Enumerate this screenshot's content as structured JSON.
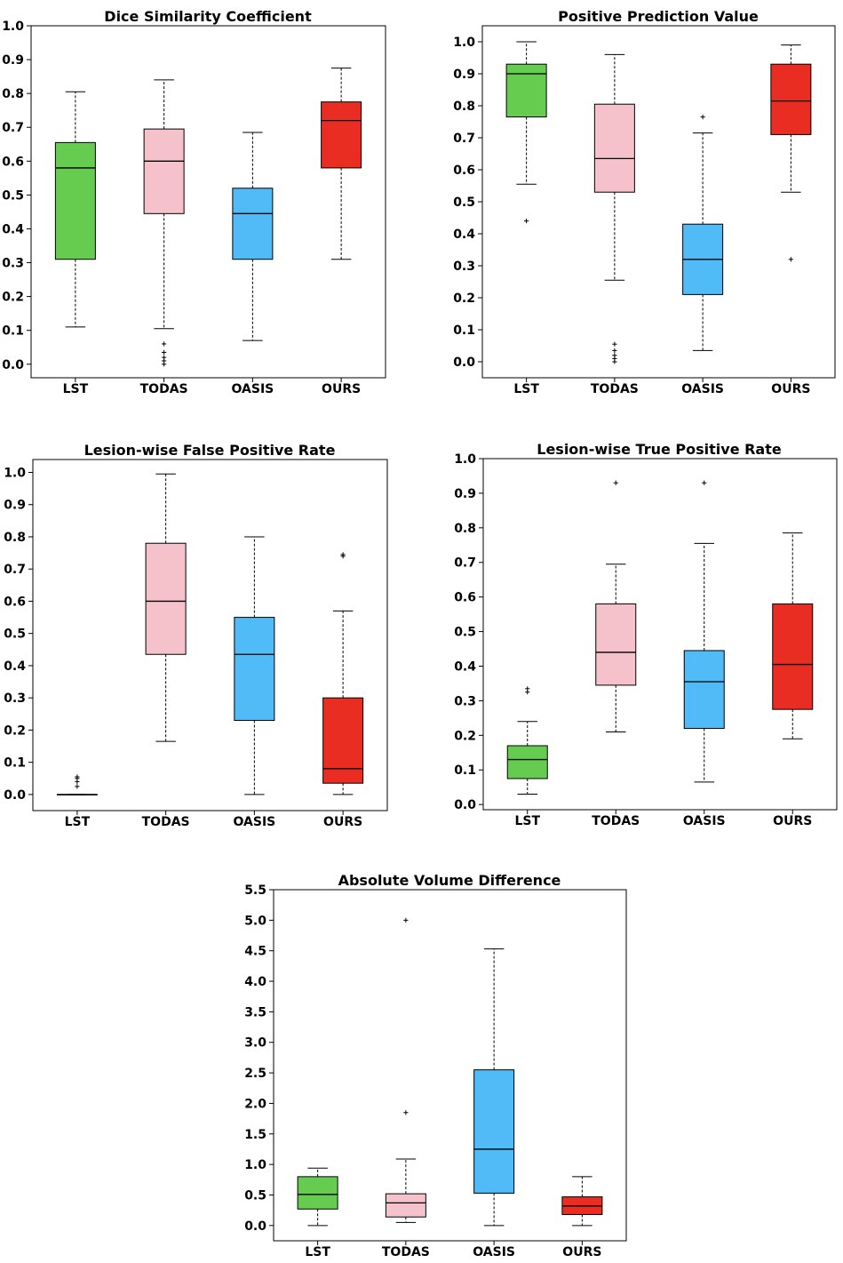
{
  "colors": {
    "LST": "#66cc4f",
    "TODAS": "#f5c2cc",
    "OASIS": "#50bbf6",
    "OURS": "#e92d22"
  },
  "chart_data": [
    {
      "type": "box",
      "title": "Dice Similarity Coefficient",
      "categories": [
        "LST",
        "TODAS",
        "OASIS",
        "OURS"
      ],
      "ylim": [
        -0.04,
        1.0
      ],
      "yticks": [
        "0.0",
        "0.1",
        "0.2",
        "0.3",
        "0.4",
        "0.5",
        "0.6",
        "0.7",
        "0.8",
        "0.9",
        "1.0"
      ],
      "grid": false,
      "boxes": [
        {
          "name": "LST",
          "whislo": 0.11,
          "q1": 0.31,
          "med": 0.58,
          "q3": 0.655,
          "whishi": 0.805,
          "fliers": []
        },
        {
          "name": "TODAS",
          "whislo": 0.105,
          "q1": 0.445,
          "med": 0.6,
          "q3": 0.695,
          "whishi": 0.84,
          "fliers": [
            0.0,
            0.01,
            0.02,
            0.035,
            0.06
          ]
        },
        {
          "name": "OASIS",
          "whislo": 0.07,
          "q1": 0.31,
          "med": 0.445,
          "q3": 0.52,
          "whishi": 0.685,
          "fliers": []
        },
        {
          "name": "OURS",
          "whislo": 0.31,
          "q1": 0.58,
          "med": 0.72,
          "q3": 0.775,
          "whishi": 0.875,
          "fliers": []
        }
      ]
    },
    {
      "type": "box",
      "title": "Positive Prediction Value",
      "categories": [
        "LST",
        "TODAS",
        "OASIS",
        "OURS"
      ],
      "ylim": [
        -0.05,
        1.05
      ],
      "yticks": [
        "0.0",
        "0.1",
        "0.2",
        "0.3",
        "0.4",
        "0.5",
        "0.6",
        "0.7",
        "0.8",
        "0.9",
        "1.0"
      ],
      "grid": false,
      "boxes": [
        {
          "name": "LST",
          "whislo": 0.555,
          "q1": 0.765,
          "med": 0.9,
          "q3": 0.93,
          "whishi": 1.0,
          "fliers": [
            0.44
          ]
        },
        {
          "name": "TODAS",
          "whislo": 0.255,
          "q1": 0.53,
          "med": 0.635,
          "q3": 0.805,
          "whishi": 0.96,
          "fliers": [
            0.0,
            0.01,
            0.02,
            0.035,
            0.055
          ]
        },
        {
          "name": "OASIS",
          "whislo": 0.035,
          "q1": 0.21,
          "med": 0.32,
          "q3": 0.43,
          "whishi": 0.715,
          "fliers": [
            0.765
          ]
        },
        {
          "name": "OURS",
          "whislo": 0.53,
          "q1": 0.71,
          "med": 0.815,
          "q3": 0.93,
          "whishi": 0.99,
          "fliers": [
            0.32
          ]
        }
      ]
    },
    {
      "type": "box",
      "title": "Lesion-wise False Positive Rate",
      "categories": [
        "LST",
        "TODAS",
        "OASIS",
        "OURS"
      ],
      "ylim": [
        -0.05,
        1.04
      ],
      "yticks": [
        "0.0",
        "0.1",
        "0.2",
        "0.3",
        "0.4",
        "0.5",
        "0.6",
        "0.7",
        "0.8",
        "0.9",
        "1.0"
      ],
      "grid": false,
      "boxes": [
        {
          "name": "LST",
          "whislo": 0.0,
          "q1": 0.0,
          "med": 0.0,
          "q3": 0.0,
          "whishi": 0.0,
          "fliers": [
            0.025,
            0.04,
            0.05,
            0.055
          ]
        },
        {
          "name": "TODAS",
          "whislo": 0.165,
          "q1": 0.435,
          "med": 0.6,
          "q3": 0.78,
          "whishi": 0.995,
          "fliers": []
        },
        {
          "name": "OASIS",
          "whislo": 0.0,
          "q1": 0.23,
          "med": 0.435,
          "q3": 0.55,
          "whishi": 0.8,
          "fliers": []
        },
        {
          "name": "OURS",
          "whislo": 0.0,
          "q1": 0.035,
          "med": 0.08,
          "q3": 0.3,
          "whishi": 0.57,
          "fliers": [
            0.74,
            0.745
          ]
        }
      ]
    },
    {
      "type": "box",
      "title": "Lesion-wise True Positive Rate",
      "categories": [
        "LST",
        "TODAS",
        "OASIS",
        "OURS"
      ],
      "ylim": [
        -0.015,
        1.0
      ],
      "yticks": [
        "0.0",
        "0.1",
        "0.2",
        "0.3",
        "0.4",
        "0.5",
        "0.6",
        "0.7",
        "0.8",
        "0.9",
        "1.0"
      ],
      "grid": false,
      "boxes": [
        {
          "name": "LST",
          "whislo": 0.03,
          "q1": 0.075,
          "med": 0.13,
          "q3": 0.17,
          "whishi": 0.24,
          "fliers": [
            0.325,
            0.335
          ]
        },
        {
          "name": "TODAS",
          "whislo": 0.21,
          "q1": 0.345,
          "med": 0.44,
          "q3": 0.58,
          "whishi": 0.695,
          "fliers": [
            0.93
          ]
        },
        {
          "name": "OASIS",
          "whislo": 0.065,
          "q1": 0.22,
          "med": 0.355,
          "q3": 0.445,
          "whishi": 0.755,
          "fliers": [
            0.93
          ]
        },
        {
          "name": "OURS",
          "whislo": 0.19,
          "q1": 0.275,
          "med": 0.405,
          "q3": 0.58,
          "whishi": 0.785,
          "fliers": []
        }
      ]
    },
    {
      "type": "box",
      "title": "Absolute Volume Difference",
      "categories": [
        "LST",
        "TODAS",
        "OASIS",
        "OURS"
      ],
      "ylim": [
        -0.25,
        5.5
      ],
      "yticks": [
        "0.0",
        "0.5",
        "1.0",
        "1.5",
        "2.0",
        "2.5",
        "3.0",
        "3.5",
        "4.0",
        "4.5",
        "5.0",
        "5.5"
      ],
      "grid": false,
      "boxes": [
        {
          "name": "LST",
          "whislo": 0.0,
          "q1": 0.27,
          "med": 0.51,
          "q3": 0.8,
          "whishi": 0.94,
          "fliers": []
        },
        {
          "name": "TODAS",
          "whislo": 0.05,
          "q1": 0.14,
          "med": 0.37,
          "q3": 0.52,
          "whishi": 1.09,
          "fliers": [
            1.85,
            5.0
          ]
        },
        {
          "name": "OASIS",
          "whislo": 0.0,
          "q1": 0.53,
          "med": 1.25,
          "q3": 2.55,
          "whishi": 4.53,
          "fliers": []
        },
        {
          "name": "OURS",
          "whislo": 0.0,
          "q1": 0.18,
          "med": 0.32,
          "q3": 0.47,
          "whishi": 0.8,
          "fliers": []
        }
      ]
    }
  ]
}
